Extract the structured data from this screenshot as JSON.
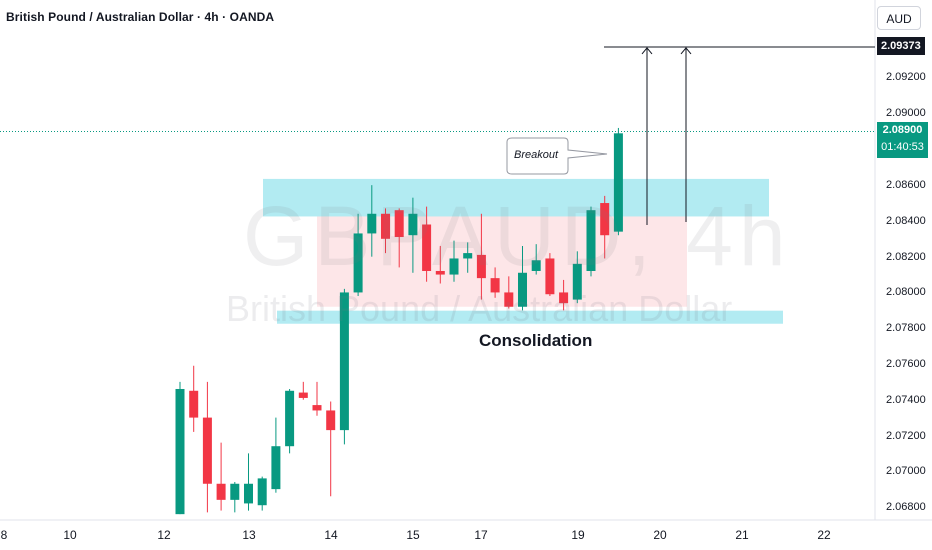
{
  "header": {
    "title": "British Pound / Australian Dollar · 4h · OANDA"
  },
  "currency_button": "AUD",
  "watermark": {
    "symbol": "GBPAUD, 4h",
    "name": "British Pound / Australian Dollar"
  },
  "annotations": {
    "consolidation": "Consolidation",
    "breakout": "Breakout"
  },
  "price_labels": {
    "target": "2.09373",
    "current": "2.08900",
    "countdown": "01:40:53"
  },
  "colors": {
    "up": "#089981",
    "down": "#F23645",
    "zone": "#B2EBF2",
    "range": "#FDE2E4",
    "target_label": "#131722"
  },
  "chart_data": {
    "type": "candlestick",
    "title": "British Pound / Australian Dollar · 4h · OANDA",
    "y_ticks": [
      "2.09200",
      "2.09000",
      "2.08600",
      "2.08400",
      "2.08200",
      "2.08000",
      "2.07800",
      "2.07600",
      "2.07400",
      "2.07200",
      "2.07000",
      "2.06800"
    ],
    "x_ticks": [
      "8",
      "10",
      "12",
      "13",
      "14",
      "15",
      "17",
      "19",
      "20",
      "21",
      "22"
    ],
    "ylim": [
      2.0674,
      2.0952
    ],
    "resistance_zone": [
      2.08425,
      2.08635
    ],
    "support_zone": [
      2.07825,
      2.07898
    ],
    "consolidation_range": [
      2.0792,
      2.0843
    ],
    "target_price": 2.09373,
    "current_price": 2.089,
    "candles": [
      {
        "o": 2.0676,
        "h": 2.075,
        "l": 2.0676,
        "c": 2.0746
      },
      {
        "o": 2.0745,
        "h": 2.0759,
        "l": 2.0722,
        "c": 2.073
      },
      {
        "o": 2.073,
        "h": 2.075,
        "l": 2.0677,
        "c": 2.0693
      },
      {
        "o": 2.0693,
        "h": 2.0716,
        "l": 2.0678,
        "c": 2.0684
      },
      {
        "o": 2.0684,
        "h": 2.0694,
        "l": 2.0677,
        "c": 2.0693
      },
      {
        "o": 2.0682,
        "h": 2.071,
        "l": 2.0678,
        "c": 2.0693
      },
      {
        "o": 2.0681,
        "h": 2.0697,
        "l": 2.0678,
        "c": 2.0696
      },
      {
        "o": 2.069,
        "h": 2.073,
        "l": 2.0688,
        "c": 2.0714
      },
      {
        "o": 2.0714,
        "h": 2.0746,
        "l": 2.071,
        "c": 2.0745
      },
      {
        "o": 2.0744,
        "h": 2.075,
        "l": 2.074,
        "c": 2.0741
      },
      {
        "o": 2.0737,
        "h": 2.075,
        "l": 2.0731,
        "c": 2.0734
      },
      {
        "o": 2.0734,
        "h": 2.0739,
        "l": 2.0686,
        "c": 2.0723
      },
      {
        "o": 2.0723,
        "h": 2.0802,
        "l": 2.0715,
        "c": 2.08
      },
      {
        "o": 2.08,
        "h": 2.0844,
        "l": 2.0798,
        "c": 2.0833
      },
      {
        "o": 2.0833,
        "h": 2.086,
        "l": 2.082,
        "c": 2.0844
      },
      {
        "o": 2.0844,
        "h": 2.0847,
        "l": 2.0822,
        "c": 2.083
      },
      {
        "o": 2.0846,
        "h": 2.0847,
        "l": 2.0814,
        "c": 2.0831
      },
      {
        "o": 2.0832,
        "h": 2.0853,
        "l": 2.0811,
        "c": 2.0844
      },
      {
        "o": 2.0838,
        "h": 2.0848,
        "l": 2.0806,
        "c": 2.0812
      },
      {
        "o": 2.0812,
        "h": 2.0826,
        "l": 2.0805,
        "c": 2.081
      },
      {
        "o": 2.081,
        "h": 2.0829,
        "l": 2.0806,
        "c": 2.0819
      },
      {
        "o": 2.0819,
        "h": 2.0828,
        "l": 2.0811,
        "c": 2.0822
      },
      {
        "o": 2.0821,
        "h": 2.0844,
        "l": 2.0796,
        "c": 2.0808
      },
      {
        "o": 2.0808,
        "h": 2.0814,
        "l": 2.0797,
        "c": 2.08
      },
      {
        "o": 2.08,
        "h": 2.0809,
        "l": 2.0791,
        "c": 2.0792
      },
      {
        "o": 2.0792,
        "h": 2.0826,
        "l": 2.079,
        "c": 2.0811
      },
      {
        "o": 2.0812,
        "h": 2.0827,
        "l": 2.081,
        "c": 2.0818
      },
      {
        "o": 2.0819,
        "h": 2.0822,
        "l": 2.0798,
        "c": 2.0799
      },
      {
        "o": 2.08,
        "h": 2.0807,
        "l": 2.079,
        "c": 2.0794
      },
      {
        "o": 2.0796,
        "h": 2.0823,
        "l": 2.0794,
        "c": 2.0816
      },
      {
        "o": 2.0812,
        "h": 2.0848,
        "l": 2.0809,
        "c": 2.0846
      },
      {
        "o": 2.085,
        "h": 2.0854,
        "l": 2.0819,
        "c": 2.0832
      },
      {
        "o": 2.0834,
        "h": 2.0892,
        "l": 2.0832,
        "c": 2.0889
      }
    ]
  }
}
